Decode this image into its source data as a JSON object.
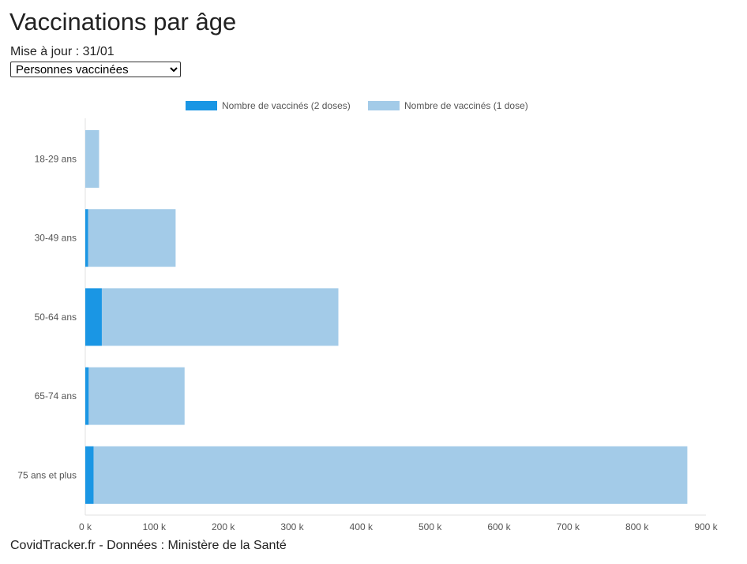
{
  "page": {
    "title": "Vaccinations par âge",
    "updated": "Mise à jour : 31/01",
    "selector": {
      "selected": "Personnes vaccinées",
      "options": [
        "Personnes vaccinées"
      ]
    },
    "footer": "CovidTracker.fr - Données : Ministère de la Santé"
  },
  "chart_data": {
    "type": "bar",
    "orientation": "horizontal",
    "stacked": true,
    "categories": [
      "18-29 ans",
      "30-49 ans",
      "50-64 ans",
      "65-74 ans",
      "75 ans et plus"
    ],
    "series": [
      {
        "name": "Nombre de vaccinés (2 doses)",
        "color": "#1a96e4",
        "values": [
          0,
          4000,
          24000,
          5000,
          12000
        ]
      },
      {
        "name": "Nombre de vaccinés (1 dose)",
        "color": "#a3cbe8",
        "values": [
          20000,
          127000,
          343000,
          139000,
          861000
        ]
      }
    ],
    "xlim": [
      0,
      900000
    ],
    "xticks": [
      0,
      100000,
      200000,
      300000,
      400000,
      500000,
      600000,
      700000,
      800000,
      900000
    ],
    "xtick_labels": [
      "0 k",
      "100 k",
      "200 k",
      "300 k",
      "400 k",
      "500 k",
      "600 k",
      "700 k",
      "800 k",
      "900 k"
    ],
    "legend_position": "top-center",
    "grid": false
  }
}
